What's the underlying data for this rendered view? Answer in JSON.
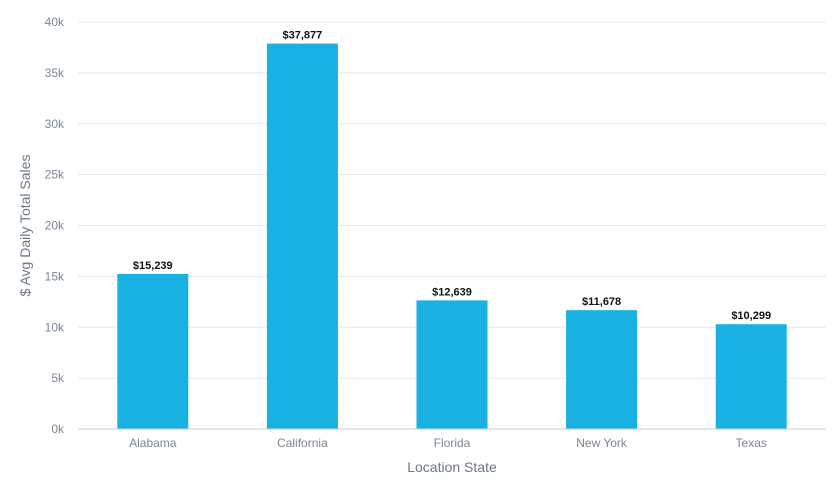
{
  "chart_data": {
    "type": "bar",
    "title": "",
    "xlabel": "Location State",
    "ylabel": "$ Avg Daily Total Sales",
    "categories": [
      "Alabama",
      "California",
      "Florida",
      "New York",
      "Texas"
    ],
    "values": [
      15239,
      37877,
      12639,
      11678,
      10299
    ],
    "value_labels": [
      "$15,239",
      "$37,877",
      "$12,639",
      "$11,678",
      "$10,299"
    ],
    "ylim": [
      0,
      40000
    ],
    "yticks": [
      0,
      5000,
      10000,
      15000,
      20000,
      25000,
      30000,
      35000,
      40000
    ],
    "ytick_labels": [
      "0k",
      "5k",
      "10k",
      "15k",
      "20k",
      "25k",
      "30k",
      "35k",
      "40k"
    ],
    "grid": true,
    "legend": "none",
    "colors": {
      "bar": "#19b1e2",
      "grid": "#e6e8eb",
      "axis": "#c8ced6",
      "tick_text": "#7a8593",
      "axis_title": "#6c7785",
      "data_label": "#111111"
    }
  }
}
